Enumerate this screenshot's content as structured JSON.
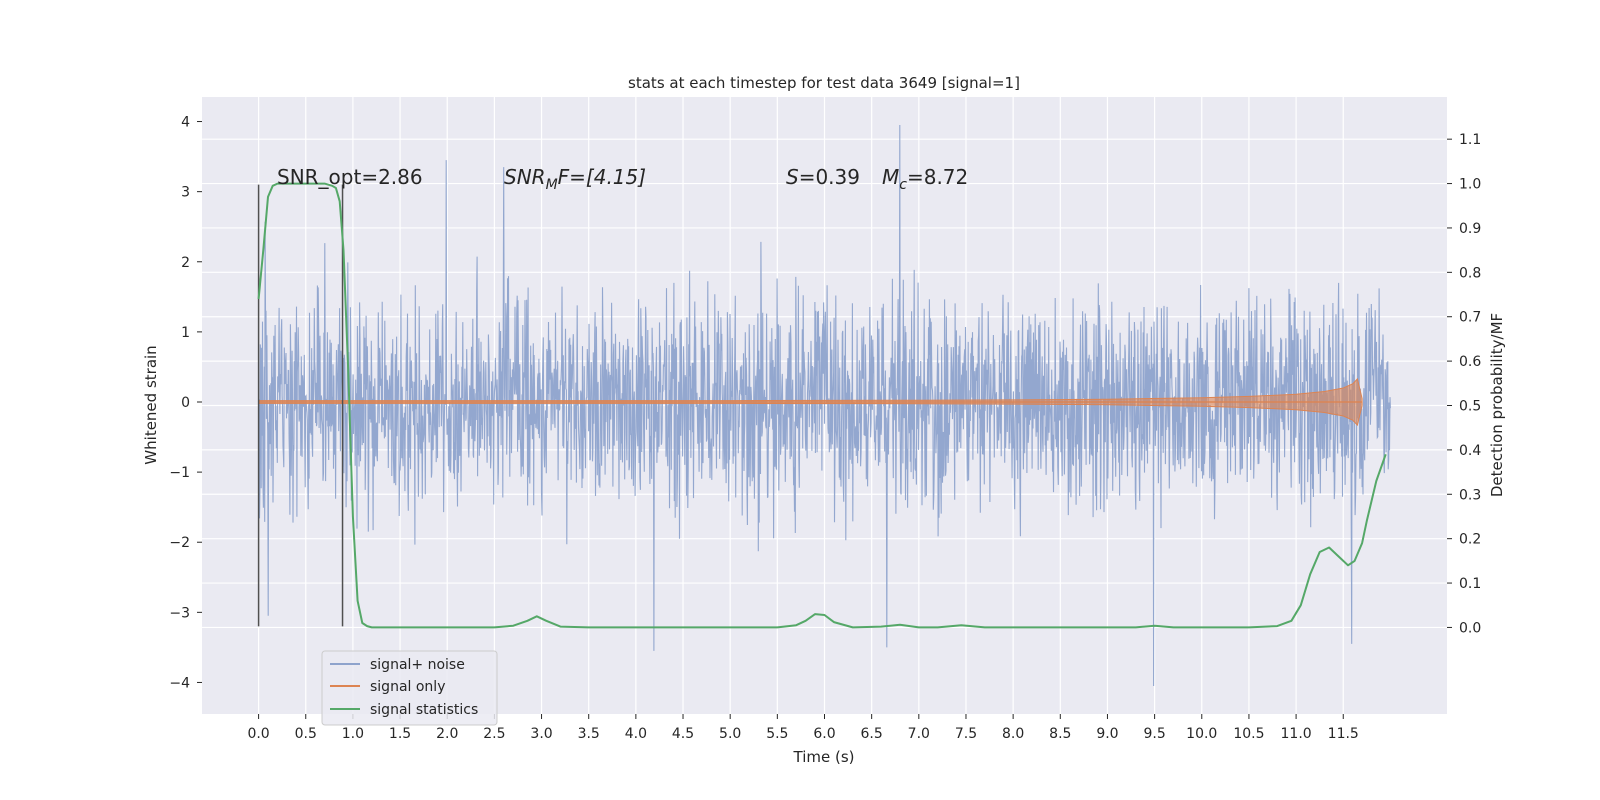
{
  "chart_data": {
    "type": "line",
    "title": "stats at each timestep for test data 3649 [signal=1]",
    "xlabel": "Time (s)",
    "ylabel": "Whitened strain",
    "y2label": "Detection probability/MF",
    "xlim": [
      -0.6,
      12.6
    ],
    "ylim": [
      -4.45,
      4.35
    ],
    "y2lim": [
      -0.195,
      1.195
    ],
    "x_ticks": [
      0.0,
      0.5,
      1.0,
      1.5,
      2.0,
      2.5,
      3.0,
      3.5,
      4.0,
      4.5,
      5.0,
      5.5,
      6.0,
      6.5,
      7.0,
      7.5,
      8.0,
      8.5,
      9.0,
      9.5,
      10.0,
      10.5,
      11.0,
      11.5
    ],
    "x_tick_labels": [
      "0.0",
      "0.5",
      "1.0",
      "1.5",
      "2.0",
      "2.5",
      "3.0",
      "3.5",
      "4.0",
      "4.5",
      "5.0",
      "5.5",
      "6.0",
      "6.5",
      "7.0",
      "7.5",
      "8.0",
      "8.5",
      "9.0",
      "9.5",
      "10.0",
      "10.5",
      "11.0",
      "11.5"
    ],
    "y_ticks": [
      -4,
      -3,
      -2,
      -1,
      0,
      1,
      2,
      3,
      4
    ],
    "y_tick_labels": [
      "−4",
      "−3",
      "−2",
      "−1",
      "0",
      "1",
      "2",
      "3",
      "4"
    ],
    "y2_ticks": [
      0.0,
      0.1,
      0.2,
      0.3,
      0.4,
      0.5,
      0.6,
      0.7,
      0.8,
      0.9,
      1.0,
      1.1
    ],
    "y2_tick_labels": [
      "0.0",
      "0.1",
      "0.2",
      "0.3",
      "0.4",
      "0.5",
      "0.6",
      "0.7",
      "0.8",
      "0.9",
      "1.0",
      "1.1"
    ],
    "grid": true,
    "legend_position": "lower-left",
    "series": [
      {
        "name": "signal+ noise",
        "axis": "left",
        "color": "#8ea3cc",
        "x_range": [
          0.0,
          12.0
        ],
        "noise_envelope": [
          -3.3,
          3.4
        ],
        "notable_peaks": [
          {
            "x": 0.1,
            "y": -3.05
          },
          {
            "x": 1.99,
            "y": 3.45
          },
          {
            "x": 2.6,
            "y": 3.35
          },
          {
            "x": 4.19,
            "y": -3.55
          },
          {
            "x": 6.8,
            "y": 3.95
          },
          {
            "x": 6.66,
            "y": -3.5
          },
          {
            "x": 9.49,
            "y": -4.05
          },
          {
            "x": 11.59,
            "y": -3.45
          }
        ]
      },
      {
        "name": "signal only",
        "axis": "left",
        "color": "#dd8452",
        "x": [
          0.0,
          1.0,
          3.0,
          5.0,
          7.0,
          8.0,
          9.0,
          10.0,
          10.5,
          11.0,
          11.3,
          11.5,
          11.6,
          11.65,
          11.7
        ],
        "amplitude": [
          0.02,
          0.02,
          0.02,
          0.02,
          0.025,
          0.03,
          0.04,
          0.06,
          0.08,
          0.11,
          0.15,
          0.2,
          0.26,
          0.33,
          0.05
        ]
      },
      {
        "name": "signal statistics",
        "axis": "right",
        "color": "#55a868",
        "x": [
          0.0,
          0.05,
          0.1,
          0.15,
          0.2,
          0.3,
          0.5,
          0.6,
          0.7,
          0.78,
          0.82,
          0.86,
          0.9,
          0.95,
          1.0,
          1.05,
          1.1,
          1.15,
          1.2,
          1.5,
          2.0,
          2.5,
          2.7,
          2.85,
          2.95,
          3.05,
          3.2,
          3.5,
          4.0,
          4.5,
          5.0,
          5.5,
          5.7,
          5.8,
          5.9,
          6.0,
          6.1,
          6.3,
          6.6,
          6.8,
          7.0,
          7.2,
          7.45,
          7.7,
          8.0,
          8.5,
          9.0,
          9.3,
          9.5,
          9.7,
          10.0,
          10.5,
          10.8,
          10.95,
          11.05,
          11.15,
          11.25,
          11.35,
          11.45,
          11.55,
          11.62,
          11.7,
          11.75,
          11.85,
          11.95
        ],
        "y": [
          0.74,
          0.85,
          0.97,
          0.995,
          1.0,
          1.0,
          1.0,
          1.0,
          1.0,
          0.995,
          0.99,
          0.96,
          0.85,
          0.58,
          0.25,
          0.06,
          0.01,
          0.003,
          0.0,
          0.0,
          0.0,
          0.0,
          0.004,
          0.015,
          0.025,
          0.015,
          0.002,
          0.0,
          0.0,
          0.0,
          0.0,
          0.0,
          0.005,
          0.015,
          0.03,
          0.028,
          0.012,
          0.0,
          0.002,
          0.006,
          0.0,
          0.0,
          0.005,
          0.0,
          0.0,
          0.0,
          0.0,
          0.0,
          0.004,
          0.0,
          0.0,
          0.0,
          0.003,
          0.015,
          0.05,
          0.12,
          0.17,
          0.18,
          0.16,
          0.14,
          0.15,
          0.19,
          0.24,
          0.33,
          0.39
        ]
      }
    ],
    "vertical_lines": [
      {
        "x": 0.0,
        "y_range": [
          -3.2,
          3.1
        ],
        "color": "#505050"
      },
      {
        "x": 0.89,
        "y_range": [
          -3.2,
          3.1
        ],
        "color": "#505050"
      }
    ],
    "annotations": {
      "snr_opt": "SNR_opt=2.86",
      "snr_mf_symbol": "SNR",
      "snr_mf_sub": "M",
      "snr_mf_rest": "F=[4.15]",
      "s_symbol": "S",
      "s_value": "=0.39",
      "mc_symbol": "M",
      "mc_sub": "c",
      "mc_value": "=8.72"
    }
  }
}
